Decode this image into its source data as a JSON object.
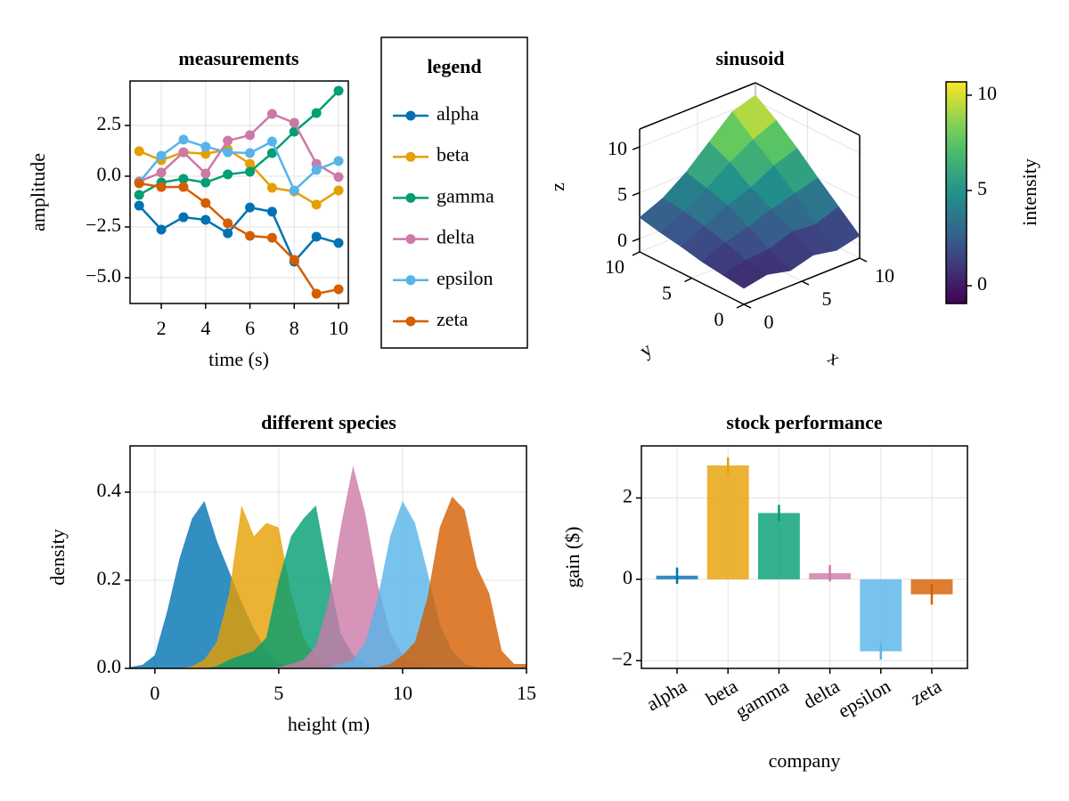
{
  "chart_data": [
    {
      "type": "line",
      "title": "measurements",
      "x_label": "time (s)",
      "y_label": "amplitude",
      "x": [
        1,
        2,
        3,
        4,
        5,
        6,
        7,
        8,
        9,
        10
      ],
      "series": [
        {
          "name": "alpha",
          "color": "#0072b2",
          "values": [
            -1.45,
            -2.63,
            -2.02,
            -2.15,
            -2.81,
            -1.54,
            -1.75,
            -4.21,
            -2.98,
            -3.29
          ]
        },
        {
          "name": "beta",
          "color": "#e69f00",
          "values": [
            1.23,
            0.79,
            1.18,
            1.1,
            1.32,
            0.61,
            -0.57,
            -0.75,
            -1.4,
            -0.7
          ]
        },
        {
          "name": "gamma",
          "color": "#009e73",
          "values": [
            -0.92,
            -0.31,
            -0.13,
            -0.31,
            0.09,
            0.22,
            1.14,
            2.19,
            3.11,
            4.21
          ]
        },
        {
          "name": "delta",
          "color": "#cc79a7",
          "values": [
            -0.26,
            0.18,
            1.18,
            0.13,
            1.75,
            2.02,
            3.07,
            2.63,
            0.61,
            -0.04
          ]
        },
        {
          "name": "epsilon",
          "color": "#56b4e9",
          "values": [
            -0.31,
            1.01,
            1.8,
            1.45,
            1.18,
            1.14,
            1.71,
            -0.7,
            0.31,
            0.75
          ]
        },
        {
          "name": "zeta",
          "color": "#d55e00",
          "values": [
            -0.35,
            -0.53,
            -0.53,
            -1.32,
            -2.32,
            -2.94,
            -3.03,
            -4.12,
            -5.79,
            -5.57
          ]
        }
      ],
      "xlim": [
        0.59,
        10.44
      ],
      "ylim": [
        -6.27,
        4.69
      ],
      "xticks": [
        2,
        4,
        6,
        8,
        10
      ],
      "yticks": [
        {
          "value": -5,
          "label": "−5.0"
        },
        {
          "value": -2.5,
          "label": "−2.5"
        },
        {
          "value": 0,
          "label": "0.0"
        },
        2.5
      ],
      "grid": true,
      "legend_title": "legend",
      "legend": "right"
    },
    {
      "type": "surface",
      "title": "sinusoid",
      "x_label": "x",
      "y_label": "y",
      "z_label": "z",
      "x": [
        0,
        2,
        4,
        6,
        8,
        10
      ],
      "y": [
        0,
        2,
        4,
        6,
        8,
        10
      ],
      "z": [
        [
          0.3,
          0.8,
          0.2,
          0.9,
          0.4,
          1.0
        ],
        [
          0.6,
          1.2,
          1.4,
          2.3,
          2.1,
          3.0
        ],
        [
          0.9,
          2.0,
          2.7,
          3.6,
          4.3,
          5.0
        ],
        [
          1.4,
          2.6,
          3.9,
          4.8,
          6.2,
          7.1
        ],
        [
          1.8,
          3.1,
          4.6,
          6.4,
          7.9,
          9.0
        ],
        [
          2.3,
          3.4,
          5.2,
          7.5,
          9.8,
          10.6
        ]
      ],
      "xlim": [
        0,
        10
      ],
      "ylim": [
        0,
        10
      ],
      "zlim": [
        -1.45,
        11.95
      ],
      "xticks": [
        0,
        5,
        10
      ],
      "yticks": [
        0,
        5,
        10
      ],
      "zticks": [
        0,
        5,
        10
      ],
      "colormap": "viridis",
      "colorbar_label": "intensity",
      "clim": [
        -0.93,
        10.7
      ],
      "cticks": [
        0,
        5,
        10
      ]
    },
    {
      "type": "density",
      "title": "different species",
      "x_label": "height (m)",
      "y_label": "density",
      "x": [
        -1,
        -0.5,
        0,
        0.5,
        1,
        1.5,
        2,
        2.5,
        3,
        3.5,
        4,
        4.5,
        5,
        5.5,
        6,
        6.5,
        7,
        7.5,
        8,
        8.5,
        9,
        9.5,
        10,
        10.5,
        11,
        11.5,
        12,
        12.5,
        13,
        13.5,
        14,
        14.5,
        15
      ],
      "series": [
        {
          "name": "alpha",
          "color": "#0072b2",
          "values": [
            0.003,
            0.008,
            0.03,
            0.13,
            0.25,
            0.34,
            0.38,
            0.29,
            0.22,
            0.15,
            0.09,
            0.04,
            0.015,
            0.005,
            0.001,
            0,
            0,
            0,
            0,
            0,
            0,
            0,
            0,
            0,
            0,
            0,
            0,
            0,
            0,
            0,
            0,
            0,
            0
          ]
        },
        {
          "name": "beta",
          "color": "#e69f00",
          "values": [
            0,
            0,
            0,
            0,
            0,
            0.005,
            0.02,
            0.06,
            0.17,
            0.37,
            0.3,
            0.33,
            0.32,
            0.17,
            0.07,
            0.025,
            0.008,
            0.002,
            0,
            0,
            0,
            0,
            0,
            0,
            0,
            0,
            0,
            0,
            0,
            0,
            0,
            0,
            0
          ]
        },
        {
          "name": "gamma",
          "color": "#009e73",
          "values": [
            0,
            0,
            0,
            0,
            0,
            0,
            0,
            0.005,
            0.02,
            0.03,
            0.04,
            0.07,
            0.2,
            0.3,
            0.34,
            0.37,
            0.22,
            0.08,
            0.03,
            0.01,
            0.003,
            0,
            0,
            0,
            0,
            0,
            0,
            0,
            0,
            0,
            0,
            0,
            0
          ]
        },
        {
          "name": "delta",
          "color": "#cc79a7",
          "values": [
            0,
            0,
            0,
            0,
            0,
            0,
            0,
            0,
            0,
            0,
            0,
            0,
            0.003,
            0.01,
            0.02,
            0.05,
            0.15,
            0.32,
            0.46,
            0.35,
            0.19,
            0.08,
            0.03,
            0.01,
            0.003,
            0,
            0,
            0,
            0,
            0,
            0,
            0,
            0
          ]
        },
        {
          "name": "epsilon",
          "color": "#56b4e9",
          "values": [
            0,
            0,
            0,
            0,
            0,
            0,
            0,
            0,
            0,
            0,
            0,
            0,
            0,
            0,
            0,
            0,
            0.003,
            0.01,
            0.02,
            0.06,
            0.16,
            0.3,
            0.38,
            0.33,
            0.22,
            0.1,
            0.04,
            0.01,
            0.003,
            0,
            0,
            0,
            0
          ]
        },
        {
          "name": "zeta",
          "color": "#d55e00",
          "values": [
            0,
            0,
            0,
            0,
            0,
            0,
            0,
            0,
            0,
            0,
            0,
            0,
            0,
            0,
            0,
            0,
            0,
            0,
            0,
            0,
            0.003,
            0.01,
            0.03,
            0.06,
            0.16,
            0.32,
            0.39,
            0.36,
            0.23,
            0.17,
            0.04,
            0.01,
            0.01
          ]
        }
      ],
      "xlim": [
        -1,
        15
      ],
      "ylim": [
        0,
        0.505
      ],
      "xticks": [
        0,
        5,
        10,
        15
      ],
      "yticks": [
        {
          "value": 0,
          "label": "0.0"
        },
        0.2,
        0.4
      ],
      "grid": true
    },
    {
      "type": "bar",
      "title": "stock performance",
      "x_label": "company",
      "y_label": "gain ($)",
      "categories": [
        "alpha",
        "beta",
        "gamma",
        "delta",
        "epsilon",
        "zeta"
      ],
      "values": [
        0.09,
        2.8,
        1.63,
        0.15,
        -1.77,
        -0.37
      ],
      "errors": [
        0.2,
        0.2,
        0.2,
        0.2,
        0.2,
        0.25
      ],
      "colors": [
        "#0072b2",
        "#e69f00",
        "#009e73",
        "#cc79a7",
        "#56b4e9",
        "#d55e00"
      ],
      "ylim": [
        -2.19,
        3.28
      ],
      "yticks": [
        {
          "value": -2,
          "label": "−2"
        },
        0,
        2
      ],
      "grid": true
    }
  ]
}
